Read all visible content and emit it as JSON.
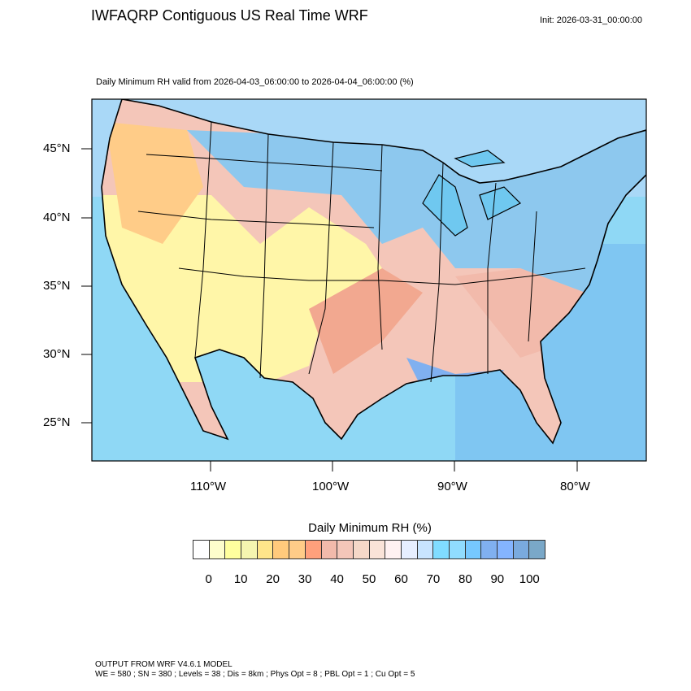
{
  "header": {
    "title": "IWFAQRP Contiguous US Real Time WRF",
    "init": "Init: 2026-03-31_00:00:00",
    "subtitle": "Daily Minimum RH valid from 2026-04-03_06:00:00 to 2026-04-04_06:00:00   (%)"
  },
  "axes": {
    "lat_labels": [
      "45°N",
      "40°N",
      "35°N",
      "30°N",
      "25°N"
    ],
    "lon_labels": [
      "110°W",
      "100°W",
      "90°W",
      "80°W"
    ]
  },
  "colorbar": {
    "title": "Daily Minimum RH  (%)",
    "labels": [
      "0",
      "10",
      "20",
      "30",
      "40",
      "50",
      "60",
      "70",
      "80",
      "90",
      "100"
    ],
    "colors": [
      "#ffffff",
      "#fdfdcc",
      "#ffff9e",
      "#f5f5b0",
      "#ffe58a",
      "#ffca7c",
      "#ffcc88",
      "#ffa07c",
      "#f2baab",
      "#f4c6b9",
      "#f5d8c8",
      "#fae3d8",
      "#fff1f1",
      "#e6eeff",
      "#c8e4ff",
      "#80dcff",
      "#90dcff",
      "#76c8ff",
      "#80b0f0",
      "#84b4ff",
      "#7aaade",
      "#7aa8c8"
    ]
  },
  "footer": {
    "line1": "OUTPUT FROM WRF V4.6.1 MODEL",
    "line2": "WE = 580 ; SN = 380 ; Levels = 38 ; Dis = 8km ; Phys Opt = 8 ; PBL Opt = 1 ; Cu Opt = 5"
  }
}
